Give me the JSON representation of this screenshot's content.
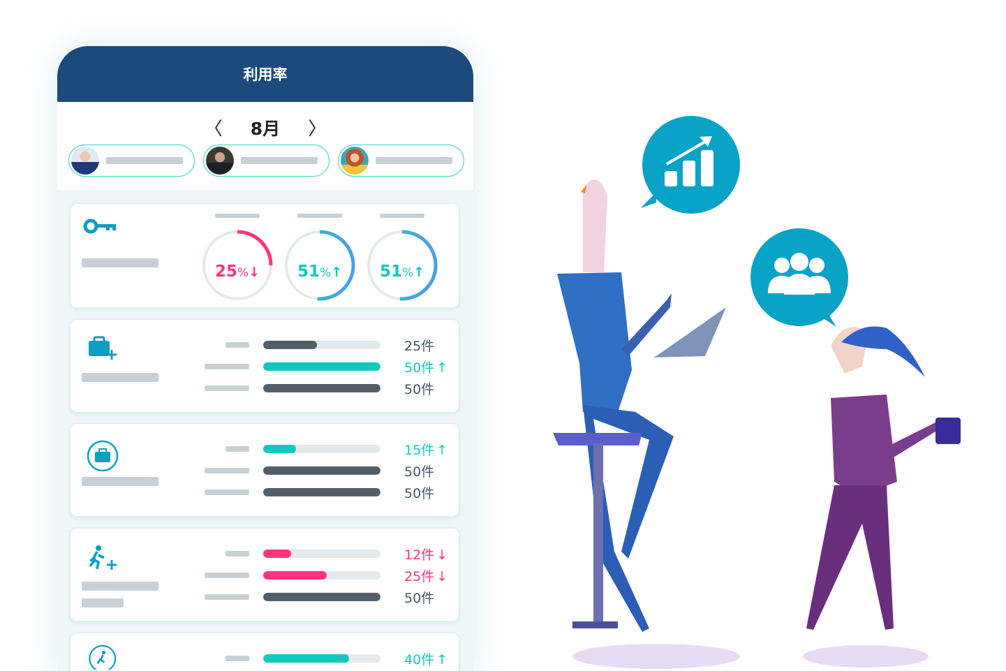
{
  "header": {
    "title": "利用率"
  },
  "month_nav": {
    "prev_icon": "chevron-left-icon",
    "label": "8月",
    "next_icon": "chevron-right-icon"
  },
  "users": [
    {
      "avatar": "man-in-suit-arms-crossed"
    },
    {
      "avatar": "man-in-suit-dark"
    },
    {
      "avatar": "woman-red-hair"
    }
  ],
  "colors": {
    "header": "#1c4a7a",
    "teal": "#14c8bd",
    "pink": "#ff3380",
    "dark_bar": "#525e68",
    "icon": "#0a9fc0",
    "up": "#14c8bd",
    "down": "#ff3380"
  },
  "donut_card": {
    "icon": "key-icon",
    "donuts": [
      {
        "value": "25",
        "unit": "%",
        "arrow": "↓",
        "trend": "down",
        "percent": 25
      },
      {
        "value": "51",
        "unit": "%",
        "arrow": "↑",
        "trend": "up",
        "percent": 51
      },
      {
        "value": "51",
        "unit": "%",
        "arrow": "↑",
        "trend": "up",
        "percent": 51
      }
    ]
  },
  "bar_cards": [
    {
      "icon": "briefcase-plus-icon",
      "rows": [
        {
          "text": "25件",
          "arrow": "",
          "trend": "neutral",
          "fill": 0.46
        },
        {
          "text": "50件",
          "arrow": "↑",
          "trend": "up",
          "fill": 1
        },
        {
          "text": "50件",
          "arrow": "",
          "trend": "neutral",
          "fill": 1
        }
      ]
    },
    {
      "icon": "briefcase-cycle-icon",
      "rows": [
        {
          "text": "15件",
          "arrow": "↑",
          "trend": "up",
          "fill": 0.28
        },
        {
          "text": "50件",
          "arrow": "",
          "trend": "neutral",
          "fill": 1
        },
        {
          "text": "50件",
          "arrow": "",
          "trend": "neutral",
          "fill": 1
        }
      ]
    },
    {
      "icon": "person-running-plus-icon",
      "rows": [
        {
          "text": "12件",
          "arrow": "↓",
          "trend": "down",
          "fill": 0.24
        },
        {
          "text": "25件",
          "arrow": "↓",
          "trend": "down",
          "fill": 0.54
        },
        {
          "text": "50件",
          "arrow": "",
          "trend": "neutral",
          "fill": 1
        }
      ]
    },
    {
      "icon": "person-running-cycle-icon",
      "rows": [
        {
          "text": "40件",
          "arrow": "↑",
          "trend": "up",
          "fill": 0.73
        }
      ]
    }
  ],
  "illustration": {
    "bubble1_icon": "bar-chart-growth-icon",
    "bubble2_icon": "team-group-icon"
  }
}
